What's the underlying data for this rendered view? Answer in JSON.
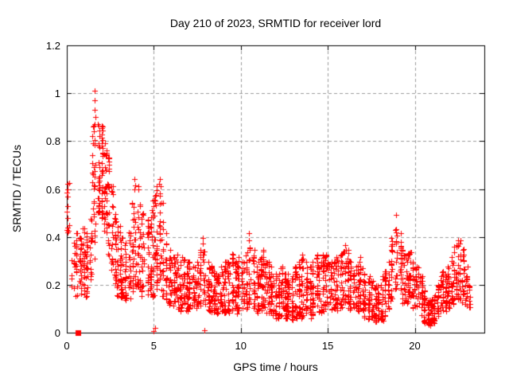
{
  "chart_data": {
    "type": "scatter",
    "title": "Day 210 of 2023, SRMTID for receiver lord",
    "xlabel": "GPS time / hours",
    "ylabel": "SRMTID / TECUs",
    "xlim": [
      0,
      24
    ],
    "ylim": [
      0,
      1.2
    ],
    "xticks": [
      0,
      5,
      10,
      15,
      20
    ],
    "xtick_labels": [
      "0",
      "5",
      "10",
      "15",
      "20"
    ],
    "yticks": [
      0,
      0.2,
      0.4,
      0.6,
      0.8,
      1,
      1.2
    ],
    "ytick_labels": [
      "0",
      "0.2",
      "0.4",
      "0.6",
      "0.8",
      "1",
      "1.2"
    ],
    "grid": true,
    "legend": "none",
    "marker": {
      "glyph": "plus",
      "color": "#ff0000",
      "size": 7
    },
    "grid_color": "#9b9b9b",
    "axis_color": "#000000",
    "background": "#ffffff",
    "seed": 7,
    "square_marker": {
      "x": 0.62,
      "y": 0,
      "shape": "filled-square"
    },
    "axis_points": [
      [
        5.0,
        0.005
      ],
      [
        5.06,
        0.02
      ],
      [
        7.93,
        0.01
      ]
    ],
    "peak_points": [
      [
        1.58,
        1.01
      ],
      [
        1.62,
        0.97
      ],
      [
        1.6,
        0.93
      ],
      [
        1.66,
        0.9
      ],
      [
        1.5,
        0.86
      ],
      [
        1.54,
        0.84
      ],
      [
        1.47,
        0.82
      ],
      [
        0.04,
        0.62
      ],
      [
        0.04,
        0.6
      ],
      [
        0.05,
        0.57
      ],
      [
        0.05,
        0.53
      ],
      [
        0.06,
        0.48
      ],
      [
        0.06,
        0.44
      ],
      [
        0.04,
        0.42
      ]
    ],
    "envelope_bins": [
      [
        0.05,
        0.4,
        0.63,
        6
      ],
      [
        0.35,
        0.17,
        0.38,
        12
      ],
      [
        0.55,
        0.15,
        0.42,
        18
      ],
      [
        0.75,
        0.14,
        0.4,
        22
      ],
      [
        0.95,
        0.15,
        0.44,
        22
      ],
      [
        1.15,
        0.15,
        0.42,
        20
      ],
      [
        1.35,
        0.2,
        0.48,
        16
      ],
      [
        1.5,
        0.3,
        0.8,
        14
      ],
      [
        1.62,
        0.45,
        0.88,
        14
      ],
      [
        1.8,
        0.5,
        0.88,
        30
      ],
      [
        2.0,
        0.48,
        0.87,
        34
      ],
      [
        2.2,
        0.42,
        0.8,
        28
      ],
      [
        2.4,
        0.32,
        0.74,
        22
      ],
      [
        2.6,
        0.26,
        0.62,
        20
      ],
      [
        2.8,
        0.2,
        0.5,
        22
      ],
      [
        3.0,
        0.15,
        0.45,
        24
      ],
      [
        3.2,
        0.14,
        0.4,
        24
      ],
      [
        3.4,
        0.12,
        0.38,
        22
      ],
      [
        3.6,
        0.14,
        0.42,
        20
      ],
      [
        3.8,
        0.16,
        0.55,
        20
      ],
      [
        4.0,
        0.18,
        0.65,
        22
      ],
      [
        4.2,
        0.18,
        0.62,
        20
      ],
      [
        4.4,
        0.15,
        0.5,
        22
      ],
      [
        4.6,
        0.16,
        0.48,
        22
      ],
      [
        4.8,
        0.15,
        0.52,
        22
      ],
      [
        5.0,
        0.15,
        0.58,
        24
      ],
      [
        5.2,
        0.18,
        0.62,
        22
      ],
      [
        5.35,
        0.22,
        0.65,
        18
      ],
      [
        5.5,
        0.15,
        0.55,
        20
      ],
      [
        5.7,
        0.12,
        0.42,
        20
      ],
      [
        5.9,
        0.1,
        0.35,
        20
      ],
      [
        6.1,
        0.1,
        0.32,
        22
      ],
      [
        6.3,
        0.1,
        0.33,
        22
      ],
      [
        6.5,
        0.09,
        0.3,
        22
      ],
      [
        6.7,
        0.1,
        0.32,
        22
      ],
      [
        6.9,
        0.09,
        0.3,
        20
      ],
      [
        7.1,
        0.09,
        0.3,
        20
      ],
      [
        7.3,
        0.09,
        0.28,
        20
      ],
      [
        7.5,
        0.1,
        0.3,
        20
      ],
      [
        7.7,
        0.11,
        0.35,
        18
      ],
      [
        7.9,
        0.12,
        0.4,
        20
      ],
      [
        8.1,
        0.09,
        0.3,
        20
      ],
      [
        8.3,
        0.08,
        0.28,
        20
      ],
      [
        8.5,
        0.08,
        0.26,
        20
      ],
      [
        8.7,
        0.08,
        0.25,
        20
      ],
      [
        8.9,
        0.08,
        0.28,
        20
      ],
      [
        9.1,
        0.08,
        0.3,
        20
      ],
      [
        9.3,
        0.08,
        0.3,
        20
      ],
      [
        9.5,
        0.09,
        0.33,
        20
      ],
      [
        9.7,
        0.08,
        0.3,
        20
      ],
      [
        9.9,
        0.09,
        0.32,
        22
      ],
      [
        10.1,
        0.09,
        0.3,
        20
      ],
      [
        10.3,
        0.1,
        0.34,
        18
      ],
      [
        10.55,
        0.12,
        0.42,
        18
      ],
      [
        10.75,
        0.1,
        0.35,
        20
      ],
      [
        10.95,
        0.08,
        0.3,
        20
      ],
      [
        11.15,
        0.09,
        0.32,
        22
      ],
      [
        11.35,
        0.1,
        0.35,
        22
      ],
      [
        11.55,
        0.08,
        0.3,
        22
      ],
      [
        11.75,
        0.07,
        0.28,
        22
      ],
      [
        11.95,
        0.06,
        0.25,
        22
      ],
      [
        12.15,
        0.06,
        0.25,
        22
      ],
      [
        12.35,
        0.07,
        0.28,
        22
      ],
      [
        12.55,
        0.06,
        0.25,
        24
      ],
      [
        12.75,
        0.06,
        0.25,
        22
      ],
      [
        12.95,
        0.05,
        0.24,
        22
      ],
      [
        13.15,
        0.06,
        0.28,
        22
      ],
      [
        13.35,
        0.07,
        0.3,
        22
      ],
      [
        13.55,
        0.06,
        0.33,
        24
      ],
      [
        13.75,
        0.07,
        0.3,
        22
      ],
      [
        13.95,
        0.06,
        0.28,
        22
      ],
      [
        14.15,
        0.07,
        0.3,
        22
      ],
      [
        14.35,
        0.09,
        0.33,
        22
      ],
      [
        14.55,
        0.08,
        0.3,
        22
      ],
      [
        14.75,
        0.09,
        0.33,
        22
      ],
      [
        14.95,
        0.1,
        0.33,
        22
      ],
      [
        15.15,
        0.09,
        0.3,
        20
      ],
      [
        15.35,
        0.08,
        0.3,
        20
      ],
      [
        15.55,
        0.09,
        0.32,
        20
      ],
      [
        15.75,
        0.1,
        0.33,
        20
      ],
      [
        15.95,
        0.11,
        0.37,
        20
      ],
      [
        16.15,
        0.09,
        0.35,
        20
      ],
      [
        16.35,
        0.09,
        0.3,
        20
      ],
      [
        16.55,
        0.08,
        0.28,
        22
      ],
      [
        16.75,
        0.08,
        0.3,
        20
      ],
      [
        16.95,
        0.08,
        0.32,
        20
      ],
      [
        17.15,
        0.06,
        0.25,
        20
      ],
      [
        17.35,
        0.05,
        0.24,
        20
      ],
      [
        17.55,
        0.05,
        0.22,
        22
      ],
      [
        17.75,
        0.04,
        0.2,
        20
      ],
      [
        17.95,
        0.04,
        0.2,
        20
      ],
      [
        18.15,
        0.05,
        0.24,
        20
      ],
      [
        18.35,
        0.06,
        0.26,
        18
      ],
      [
        18.55,
        0.1,
        0.3,
        18
      ],
      [
        18.75,
        0.14,
        0.4,
        18
      ],
      [
        18.95,
        0.18,
        0.5,
        20
      ],
      [
        19.15,
        0.14,
        0.42,
        20
      ],
      [
        19.35,
        0.12,
        0.35,
        20
      ],
      [
        19.55,
        0.12,
        0.33,
        20
      ],
      [
        19.75,
        0.13,
        0.34,
        20
      ],
      [
        19.95,
        0.1,
        0.3,
        20
      ],
      [
        20.15,
        0.09,
        0.28,
        20
      ],
      [
        20.35,
        0.07,
        0.24,
        20
      ],
      [
        20.55,
        0.04,
        0.18,
        22
      ],
      [
        20.75,
        0.03,
        0.14,
        24
      ],
      [
        20.95,
        0.03,
        0.14,
        24
      ],
      [
        21.15,
        0.04,
        0.16,
        22
      ],
      [
        21.35,
        0.06,
        0.2,
        20
      ],
      [
        21.55,
        0.08,
        0.26,
        20
      ],
      [
        21.75,
        0.09,
        0.25,
        20
      ],
      [
        21.95,
        0.1,
        0.28,
        20
      ],
      [
        22.15,
        0.12,
        0.32,
        20
      ],
      [
        22.35,
        0.14,
        0.37,
        20
      ],
      [
        22.55,
        0.14,
        0.39,
        20
      ],
      [
        22.75,
        0.12,
        0.35,
        20
      ],
      [
        22.95,
        0.09,
        0.28,
        16
      ],
      [
        23.15,
        0.08,
        0.2,
        10
      ]
    ]
  }
}
